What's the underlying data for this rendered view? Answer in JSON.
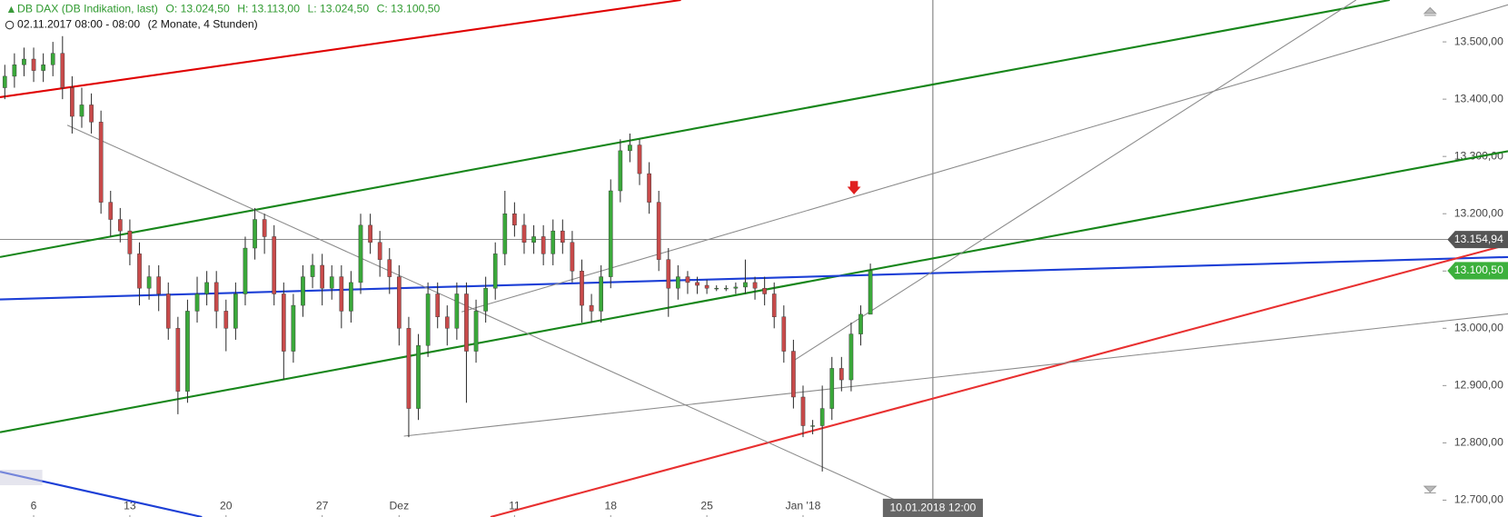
{
  "chart_data": {
    "type": "candlestick",
    "header": {
      "instrument": "DB DAX (DB Indikation, last)",
      "open": "O: 13.024,50",
      "high": "H: 13.113,00",
      "low": "L: 13.024,50",
      "close": "C: 13.100,50",
      "period": "02.11.2017 08:00 - 08:00",
      "range": "(2 Monate, 4 Stunden)"
    },
    "up_color": "#3aa83a",
    "down_color": "#c84a4a",
    "x": [
      -1.5,
      -1,
      -0.5,
      0,
      0.5,
      1,
      1.5,
      2,
      2.5,
      3,
      3.5,
      4,
      4.5,
      5,
      5.5,
      6,
      6.5,
      7,
      7.5,
      8,
      8.5,
      9,
      9.5,
      10,
      10.5,
      11,
      11.5,
      12,
      12.5,
      13,
      13.5,
      14,
      14.5,
      15,
      15.5,
      16,
      16.5,
      17,
      17.5,
      18,
      18.5,
      19,
      19.5,
      20,
      20.5,
      21,
      21.5,
      22,
      22.5,
      23,
      23.5,
      24,
      24.5,
      25,
      25.5,
      26,
      26.5,
      27,
      27.5,
      28,
      28.5,
      29,
      29.5,
      30,
      30.5,
      31,
      31.5,
      32,
      32.5,
      33,
      33.5,
      34,
      34.5,
      35,
      35.5,
      36,
      36.5,
      37,
      37.5,
      38,
      38.5,
      39,
      39.5,
      40,
      40.5,
      41,
      41.5,
      42,
      42.5,
      43,
      43.5
    ],
    "open": [
      13420,
      13440,
      13460,
      13470,
      13450,
      13460,
      13480,
      13420,
      13370,
      13390,
      13360,
      13220,
      13190,
      13170,
      13130,
      13070,
      13090,
      13060,
      13000,
      12890,
      13030,
      13060,
      13080,
      13030,
      13000,
      13060,
      13140,
      13190,
      13160,
      13060,
      12960,
      13040,
      13090,
      13110,
      13070,
      13090,
      13030,
      13080,
      13180,
      13150,
      13120,
      13090,
      13000,
      12860,
      12970,
      13060,
      13020,
      13000,
      13060,
      12960,
      13030,
      13070,
      13130,
      13200,
      13180,
      13150,
      13160,
      13130,
      13170,
      13150,
      13100,
      13040,
      13030,
      13090,
      13240,
      13310,
      13320,
      13270,
      13220,
      13120,
      13070,
      13090,
      13080,
      13075,
      13070,
      13070,
      13070,
      13072,
      13080,
      13070,
      13060,
      13020,
      12960,
      12880,
      12830,
      12830,
      12860,
      12930,
      12910,
      12990,
      13024.5
    ],
    "high": [
      13460,
      13480,
      13490,
      13490,
      13480,
      13500,
      13510,
      13440,
      13420,
      13410,
      13380,
      13240,
      13210,
      13190,
      13150,
      13110,
      13110,
      13080,
      13020,
      13050,
      13090,
      13100,
      13100,
      13050,
      13080,
      13160,
      13210,
      13200,
      13180,
      13080,
      13060,
      13110,
      13130,
      13130,
      13110,
      13110,
      13100,
      13200,
      13200,
      13170,
      13140,
      13110,
      13020,
      12990,
      13080,
      13080,
      13040,
      13080,
      13080,
      13050,
      13090,
      13150,
      13240,
      13220,
      13200,
      13180,
      13180,
      13190,
      13190,
      13170,
      13120,
      13060,
      13110,
      13260,
      13330,
      13340,
      13330,
      13290,
      13240,
      13140,
      13110,
      13100,
      13090,
      13085,
      13075,
      13075,
      13080,
      13120,
      13090,
      13090,
      13080,
      13040,
      12980,
      12900,
      12840,
      12900,
      12950,
      12950,
      13010,
      13040,
      13113
    ],
    "low": [
      13400,
      13420,
      13440,
      13430,
      13430,
      13440,
      13400,
      13340,
      13350,
      13340,
      13200,
      13160,
      13150,
      13110,
      13040,
      13050,
      13030,
      12980,
      12850,
      12870,
      13010,
      13040,
      13000,
      12960,
      12980,
      13040,
      13120,
      13130,
      13040,
      12910,
      12940,
      13020,
      13070,
      13040,
      13050,
      13000,
      13010,
      13060,
      13130,
      13090,
      13060,
      12970,
      12810,
      12840,
      12950,
      13000,
      12970,
      12980,
      12870,
      12940,
      13010,
      13050,
      13110,
      13160,
      13130,
      13130,
      13110,
      13110,
      13130,
      13080,
      13010,
      13010,
      13010,
      13070,
      13220,
      13290,
      13250,
      13200,
      13100,
      13020,
      13050,
      13060,
      13060,
      13060,
      13065,
      13065,
      13060,
      13060,
      13050,
      13040,
      13000,
      12940,
      12860,
      12810,
      12815,
      12750,
      12840,
      12890,
      12890,
      12970,
      13024.5
    ],
    "close": [
      13440,
      13460,
      13470,
      13450,
      13460,
      13480,
      13420,
      13370,
      13390,
      13360,
      13220,
      13190,
      13170,
      13130,
      13070,
      13090,
      13060,
      13000,
      12890,
      13030,
      13060,
      13080,
      13030,
      13000,
      13060,
      13140,
      13190,
      13160,
      13060,
      12960,
      13040,
      13090,
      13110,
      13070,
      13090,
      13030,
      13080,
      13180,
      13150,
      13120,
      13090,
      13000,
      12860,
      12970,
      13060,
      13020,
      13000,
      13060,
      12960,
      13030,
      13070,
      13130,
      13200,
      13180,
      13150,
      13160,
      13130,
      13170,
      13150,
      13100,
      13040,
      13030,
      13090,
      13240,
      13310,
      13320,
      13270,
      13220,
      13120,
      13070,
      13090,
      13080,
      13075,
      13070,
      13070,
      13070,
      13072,
      13080,
      13070,
      13060,
      13020,
      12960,
      12880,
      12830,
      12830,
      12860,
      12930,
      12910,
      12990,
      13024.5,
      13100.5
    ],
    "xlim": [
      -1.75,
      71.75
    ],
    "ylim": [
      12670.6,
      13573.1
    ],
    "xticks": [
      {
        "value": 0,
        "label": "6"
      },
      {
        "value": 5,
        "label": "13"
      },
      {
        "value": 10,
        "label": "20"
      },
      {
        "value": 15,
        "label": "27"
      },
      {
        "value": 19,
        "label": "Dez"
      },
      {
        "value": 25,
        "label": "11"
      },
      {
        "value": 30,
        "label": "18"
      },
      {
        "value": 35,
        "label": "25"
      },
      {
        "value": 40,
        "label": "Jan '18"
      }
    ],
    "yticks": [
      {
        "value": 12700,
        "label": "12.700,00"
      },
      {
        "value": 12800,
        "label": "12.800,00"
      },
      {
        "value": 12900,
        "label": "12.900,00"
      },
      {
        "value": 13000,
        "label": "13.000,00"
      },
      {
        "value": 13100,
        "label": "13.100,00"
      },
      {
        "value": 13200,
        "label": "13.200,00"
      },
      {
        "value": 13300,
        "label": "13.300,00"
      },
      {
        "value": 13400,
        "label": "13.400,00"
      },
      {
        "value": 13500,
        "label": "13.500,00"
      }
    ],
    "trendlines": [
      {
        "color": "#e00000",
        "x": [
          -1.75,
          33.65
        ],
        "y": [
          13403.4,
          13573.1
        ]
      },
      {
        "color": "#17861a",
        "x": [
          -1.75,
          70.5
        ],
        "y": [
          13124.4,
          13573.1
        ]
      },
      {
        "color": "#17861a",
        "x": [
          -1.75,
          76.65
        ],
        "y": [
          12818.5,
          13309.2
        ]
      },
      {
        "color": "#1c3fd6",
        "x": [
          -1.75,
          76.65
        ],
        "y": [
          13050.4,
          13124.4
        ]
      },
      {
        "color": "#1c3fd6",
        "x": [
          -1.75,
          8.75
        ],
        "y": [
          12749.6,
          12670.6
        ]
      },
      {
        "color": "#e83030",
        "x": [
          23.75,
          76.65
        ],
        "y": [
          12670.6,
          13146.2
        ]
      },
      {
        "color": "#8a8a8a",
        "x": [
          1.75,
          46.75
        ],
        "y": [
          13354.6,
          12670.6
        ]
      },
      {
        "color": "#8a8a8a",
        "x": [
          19.25,
          76.65
        ],
        "y": [
          12811.8,
          13025.2
        ]
      },
      {
        "color": "#8a8a8a",
        "x": [
          22.25,
          76.65
        ],
        "y": [
          13028.6,
          13564.7
        ]
      },
      {
        "color": "#8a8a8a",
        "x": [
          39.4,
          68.75
        ],
        "y": [
          12941.2,
          13573.1
        ]
      }
    ],
    "price_markers": [
      {
        "value": 13154.94,
        "label": "13.154,94",
        "color": "#555555"
      },
      {
        "value": 13100.5,
        "label": "13.100,50",
        "color": "#3cb03c"
      }
    ],
    "crosshair": {
      "x": 46.75,
      "label": "10.01.2018 12:00"
    }
  }
}
